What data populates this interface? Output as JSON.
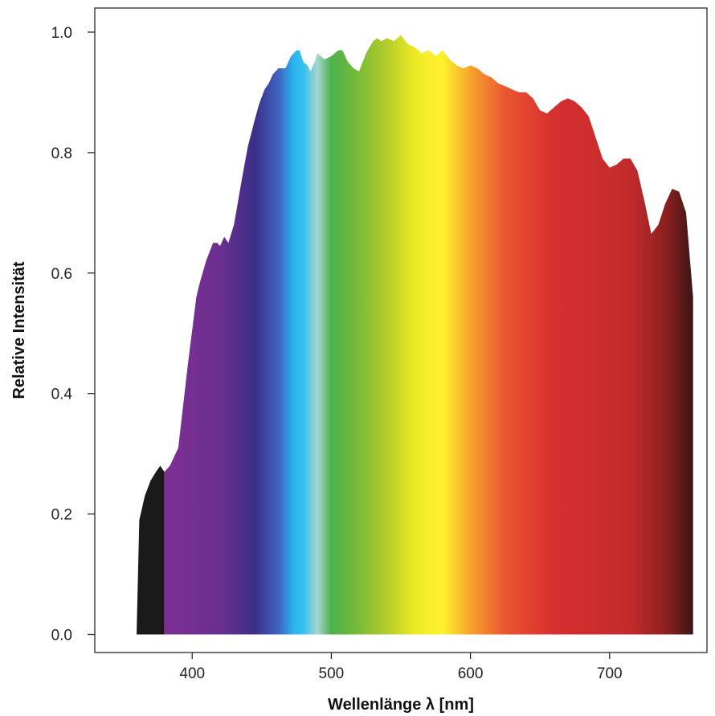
{
  "chart_data": {
    "type": "area",
    "title": "",
    "xlabel": "Wellenlänge λ [nm]",
    "ylabel": "Relative Intensität",
    "xlim": [
      330,
      770
    ],
    "ylim": [
      -0.03,
      1.04
    ],
    "x_ticks": [
      400,
      500,
      600,
      700
    ],
    "x_tick_labels": [
      "400",
      "500",
      "600",
      "700"
    ],
    "y_ticks": [
      0.0,
      0.2,
      0.4,
      0.6,
      0.8,
      1.0
    ],
    "y_tick_labels": [
      "0.0",
      "0.2",
      "0.4",
      "0.6",
      "0.8",
      "1.0"
    ],
    "grid": false,
    "legend": "none",
    "fill": "visible-spectrum gradient; ultraviolet part (< 380 nm) drawn in black",
    "uv_color": "#1a1a1a",
    "spectrum_colors": [
      {
        "nm": 380,
        "color": "#7e2f92"
      },
      {
        "nm": 420,
        "color": "#6a2f8f"
      },
      {
        "nm": 445,
        "color": "#3b2f88"
      },
      {
        "nm": 462,
        "color": "#3f63c0"
      },
      {
        "nm": 473,
        "color": "#2ab4ee"
      },
      {
        "nm": 480,
        "color": "#34c0ee"
      },
      {
        "nm": 490,
        "color": "#a8d5d0"
      },
      {
        "nm": 500,
        "color": "#4cb24a"
      },
      {
        "nm": 515,
        "color": "#6cb83c"
      },
      {
        "nm": 540,
        "color": "#b5cc2a"
      },
      {
        "nm": 560,
        "color": "#eeea26"
      },
      {
        "nm": 580,
        "color": "#fff22c"
      },
      {
        "nm": 600,
        "color": "#f6a32c"
      },
      {
        "nm": 625,
        "color": "#ea5530"
      },
      {
        "nm": 660,
        "color": "#d62f2f"
      },
      {
        "nm": 715,
        "color": "#c22b2b"
      },
      {
        "nm": 740,
        "color": "#8e2020"
      },
      {
        "nm": 760,
        "color": "#3a1616"
      }
    ],
    "series": [
      {
        "x": [
          360,
          362,
          366,
          370,
          374,
          377,
          380,
          384,
          390,
          397,
          403,
          405,
          410,
          415,
          418,
          420,
          423,
          426,
          430,
          436,
          440,
          445,
          448,
          452,
          455,
          458,
          462,
          467,
          471,
          475,
          477,
          480,
          483,
          485,
          488,
          490,
          495,
          500,
          505,
          508,
          512,
          516,
          520,
          525,
          530,
          533,
          536,
          540,
          545,
          550,
          555,
          560,
          565,
          570,
          575,
          580,
          585,
          590,
          595,
          600,
          605,
          610,
          615,
          620,
          625,
          630,
          635,
          640,
          645,
          650,
          655,
          660,
          665,
          670,
          675,
          680,
          685,
          690,
          695,
          700,
          705,
          710,
          715,
          720,
          725,
          730,
          735,
          740,
          745,
          750,
          755,
          760
        ],
        "y": [
          0.0,
          0.19,
          0.23,
          0.255,
          0.27,
          0.28,
          0.27,
          0.28,
          0.31,
          0.45,
          0.56,
          0.58,
          0.62,
          0.65,
          0.65,
          0.645,
          0.66,
          0.65,
          0.68,
          0.76,
          0.81,
          0.855,
          0.88,
          0.905,
          0.915,
          0.93,
          0.94,
          0.94,
          0.96,
          0.97,
          0.97,
          0.95,
          0.945,
          0.935,
          0.95,
          0.965,
          0.955,
          0.96,
          0.97,
          0.97,
          0.95,
          0.94,
          0.935,
          0.965,
          0.985,
          0.99,
          0.985,
          0.99,
          0.985,
          0.995,
          0.98,
          0.975,
          0.965,
          0.97,
          0.96,
          0.97,
          0.955,
          0.945,
          0.94,
          0.945,
          0.94,
          0.93,
          0.925,
          0.915,
          0.91,
          0.905,
          0.9,
          0.9,
          0.89,
          0.87,
          0.865,
          0.875,
          0.885,
          0.89,
          0.885,
          0.875,
          0.86,
          0.825,
          0.79,
          0.775,
          0.78,
          0.79,
          0.79,
          0.77,
          0.72,
          0.665,
          0.68,
          0.715,
          0.74,
          0.735,
          0.7,
          0.56
        ]
      }
    ]
  }
}
